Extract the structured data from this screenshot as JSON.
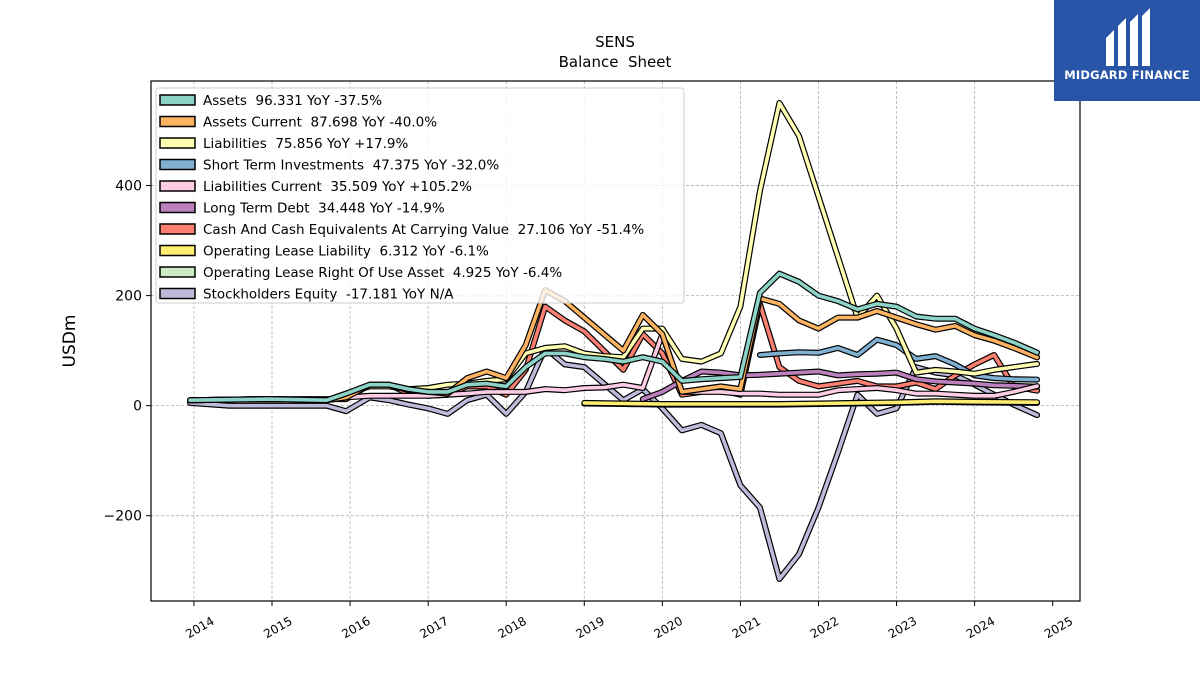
{
  "brand": {
    "name": "MIDGARD FINANCE",
    "color": "#2855a8"
  },
  "chart_data": {
    "type": "line",
    "title": "SENS",
    "subtitle": "Balance  Sheet",
    "xlabel": "",
    "ylabel": "USDm",
    "xlim": [
      2013.45,
      2025.35
    ],
    "ylim": [
      -355,
      590
    ],
    "x_ticks": [
      2014,
      2015,
      2016,
      2017,
      2018,
      2019,
      2020,
      2021,
      2022,
      2023,
      2024,
      2025
    ],
    "y_ticks": [
      -200,
      0,
      200,
      400
    ],
    "y_tick_labels": [
      "−200",
      "0",
      "200",
      "400"
    ],
    "grid": true,
    "legend_position": "top-left",
    "series": [
      {
        "name": "Assets  96.331 YoY -37.5%",
        "color": "#8dd3c7",
        "points": [
          [
            2013.95,
            10
          ],
          [
            2014.95,
            12
          ],
          [
            2015.7,
            10
          ],
          [
            2015.95,
            22
          ],
          [
            2016.25,
            38
          ],
          [
            2016.5,
            38
          ],
          [
            2016.75,
            30
          ],
          [
            2017,
            25
          ],
          [
            2017.25,
            25
          ],
          [
            2017.5,
            38
          ],
          [
            2017.75,
            40
          ],
          [
            2018,
            35
          ],
          [
            2018.25,
            70
          ],
          [
            2018.5,
            95
          ],
          [
            2018.75,
            95
          ],
          [
            2019,
            88
          ],
          [
            2019.25,
            85
          ],
          [
            2019.5,
            80
          ],
          [
            2019.75,
            88
          ],
          [
            2020,
            80
          ],
          [
            2020.25,
            45
          ],
          [
            2020.5,
            48
          ],
          [
            2020.75,
            50
          ],
          [
            2021,
            52
          ],
          [
            2021.25,
            205
          ],
          [
            2021.5,
            240
          ],
          [
            2021.75,
            225
          ],
          [
            2022,
            200
          ],
          [
            2022.25,
            190
          ],
          [
            2022.5,
            175
          ],
          [
            2022.75,
            185
          ],
          [
            2023,
            180
          ],
          [
            2023.25,
            162
          ],
          [
            2023.5,
            158
          ],
          [
            2023.75,
            158
          ],
          [
            2024,
            140
          ],
          [
            2024.25,
            128
          ],
          [
            2024.5,
            115
          ],
          [
            2024.8,
            96.331
          ]
        ]
      },
      {
        "name": "Assets Current  87.698 YoY -40.0%",
        "color": "#fdb462",
        "points": [
          [
            2013.95,
            10
          ],
          [
            2014.95,
            12
          ],
          [
            2015.7,
            10
          ],
          [
            2015.95,
            15
          ],
          [
            2016.25,
            38
          ],
          [
            2016.5,
            38
          ],
          [
            2016.75,
            28
          ],
          [
            2017,
            25
          ],
          [
            2017.25,
            22
          ],
          [
            2017.5,
            50
          ],
          [
            2017.75,
            62
          ],
          [
            2018,
            50
          ],
          [
            2018.25,
            110
          ],
          [
            2018.5,
            210
          ],
          [
            2018.75,
            190
          ],
          [
            2019,
            160
          ],
          [
            2019.25,
            130
          ],
          [
            2019.5,
            100
          ],
          [
            2019.75,
            165
          ],
          [
            2020,
            130
          ],
          [
            2020.25,
            25
          ],
          [
            2020.5,
            30
          ],
          [
            2020.75,
            35
          ],
          [
            2021,
            30
          ],
          [
            2021.25,
            195
          ],
          [
            2021.5,
            185
          ],
          [
            2021.75,
            155
          ],
          [
            2022,
            140
          ],
          [
            2022.25,
            160
          ],
          [
            2022.5,
            160
          ],
          [
            2022.75,
            172
          ],
          [
            2023,
            160
          ],
          [
            2023.25,
            148
          ],
          [
            2023.5,
            138
          ],
          [
            2023.75,
            145
          ],
          [
            2024,
            128
          ],
          [
            2024.25,
            118
          ],
          [
            2024.5,
            105
          ],
          [
            2024.8,
            87.698
          ]
        ]
      },
      {
        "name": "Liabilities  75.856 YoY +17.9%",
        "color": "#ffffb3",
        "points": [
          [
            2013.95,
            10
          ],
          [
            2014.95,
            12
          ],
          [
            2015.7,
            10
          ],
          [
            2015.95,
            22
          ],
          [
            2016.25,
            35
          ],
          [
            2016.5,
            35
          ],
          [
            2016.75,
            30
          ],
          [
            2017,
            32
          ],
          [
            2017.25,
            38
          ],
          [
            2017.5,
            40
          ],
          [
            2017.75,
            45
          ],
          [
            2018,
            48
          ],
          [
            2018.25,
            95
          ],
          [
            2018.5,
            105
          ],
          [
            2018.75,
            108
          ],
          [
            2019,
            95
          ],
          [
            2019.25,
            90
          ],
          [
            2019.5,
            88
          ],
          [
            2019.75,
            140
          ],
          [
            2020,
            140
          ],
          [
            2020.25,
            85
          ],
          [
            2020.5,
            80
          ],
          [
            2020.75,
            95
          ],
          [
            2021,
            180
          ],
          [
            2021.25,
            390
          ],
          [
            2021.5,
            550
          ],
          [
            2021.75,
            490
          ],
          [
            2022,
            380
          ],
          [
            2022.25,
            270
          ],
          [
            2022.5,
            160
          ],
          [
            2022.75,
            200
          ],
          [
            2023,
            140
          ],
          [
            2023.25,
            60
          ],
          [
            2023.5,
            65
          ],
          [
            2023.75,
            62
          ],
          [
            2024,
            58
          ],
          [
            2024.25,
            65
          ],
          [
            2024.5,
            70
          ],
          [
            2024.8,
            75.856
          ]
        ]
      },
      {
        "name": "Short Term Investments  47.375 YoY -32.0%",
        "color": "#80b1d3",
        "points": [
          [
            2021.25,
            92
          ],
          [
            2021.5,
            95
          ],
          [
            2021.75,
            97
          ],
          [
            2022,
            96
          ],
          [
            2022.25,
            105
          ],
          [
            2022.5,
            92
          ],
          [
            2022.75,
            120
          ],
          [
            2023,
            110
          ],
          [
            2023.25,
            85
          ],
          [
            2023.5,
            90
          ],
          [
            2023.75,
            75
          ],
          [
            2024,
            55
          ],
          [
            2024.25,
            50
          ],
          [
            2024.5,
            48
          ],
          [
            2024.8,
            47.375
          ]
        ]
      },
      {
        "name": "Liabilities Current  35.509 YoY +105.2%",
        "color": "#fccde5",
        "points": [
          [
            2013.95,
            10
          ],
          [
            2014.95,
            12
          ],
          [
            2015.7,
            10
          ],
          [
            2015.95,
            15
          ],
          [
            2016.25,
            18
          ],
          [
            2016.5,
            18
          ],
          [
            2016.75,
            18
          ],
          [
            2017,
            18
          ],
          [
            2017.25,
            20
          ],
          [
            2017.5,
            22
          ],
          [
            2017.75,
            25
          ],
          [
            2018,
            25
          ],
          [
            2018.25,
            25
          ],
          [
            2018.5,
            30
          ],
          [
            2018.75,
            28
          ],
          [
            2019,
            32
          ],
          [
            2019.25,
            33
          ],
          [
            2019.5,
            38
          ],
          [
            2019.75,
            32
          ],
          [
            2020,
            130
          ],
          [
            2020.25,
            25
          ],
          [
            2020.5,
            25
          ],
          [
            2020.75,
            25
          ],
          [
            2021,
            22
          ],
          [
            2021.25,
            22
          ],
          [
            2021.5,
            20
          ],
          [
            2021.75,
            20
          ],
          [
            2022,
            20
          ],
          [
            2022.25,
            28
          ],
          [
            2022.5,
            30
          ],
          [
            2022.75,
            32
          ],
          [
            2023,
            28
          ],
          [
            2023.25,
            22
          ],
          [
            2023.5,
            22
          ],
          [
            2023.75,
            20
          ],
          [
            2024,
            18
          ],
          [
            2024.25,
            18
          ],
          [
            2024.5,
            25
          ],
          [
            2024.8,
            35.509
          ]
        ]
      },
      {
        "name": "Long Term Debt  34.448 YoY -14.9%",
        "color": "#bc80bd",
        "points": [
          [
            2019.75,
            12
          ],
          [
            2020,
            25
          ],
          [
            2020.25,
            45
          ],
          [
            2020.5,
            62
          ],
          [
            2020.75,
            60
          ],
          [
            2021,
            55
          ],
          [
            2021.25,
            56
          ],
          [
            2021.5,
            58
          ],
          [
            2021.75,
            60
          ],
          [
            2022,
            62
          ],
          [
            2022.25,
            55
          ],
          [
            2022.5,
            57
          ],
          [
            2022.75,
            58
          ],
          [
            2023,
            60
          ],
          [
            2023.25,
            48
          ],
          [
            2023.5,
            44
          ],
          [
            2023.75,
            42
          ],
          [
            2024,
            40
          ],
          [
            2024.25,
            37
          ],
          [
            2024.5,
            36
          ],
          [
            2024.8,
            34.448
          ]
        ]
      },
      {
        "name": "Cash And Cash Equivalents At Carrying Value  27.106 YoY -51.4%",
        "color": "#fb8072",
        "points": [
          [
            2013.95,
            10
          ],
          [
            2014.95,
            12
          ],
          [
            2015.7,
            12
          ],
          [
            2015.95,
            12
          ],
          [
            2016.25,
            38
          ],
          [
            2016.5,
            38
          ],
          [
            2016.75,
            22
          ],
          [
            2017,
            18
          ],
          [
            2017.25,
            20
          ],
          [
            2017.5,
            35
          ],
          [
            2017.75,
            35
          ],
          [
            2018,
            20
          ],
          [
            2018.25,
            65
          ],
          [
            2018.5,
            180
          ],
          [
            2018.75,
            155
          ],
          [
            2019,
            135
          ],
          [
            2019.25,
            100
          ],
          [
            2019.5,
            65
          ],
          [
            2019.75,
            130
          ],
          [
            2020,
            95
          ],
          [
            2020.25,
            20
          ],
          [
            2020.5,
            25
          ],
          [
            2020.75,
            28
          ],
          [
            2021,
            20
          ],
          [
            2021.25,
            185
          ],
          [
            2021.5,
            70
          ],
          [
            2021.75,
            45
          ],
          [
            2022,
            35
          ],
          [
            2022.25,
            40
          ],
          [
            2022.5,
            45
          ],
          [
            2022.75,
            35
          ],
          [
            2023,
            35
          ],
          [
            2023.25,
            42
          ],
          [
            2023.5,
            30
          ],
          [
            2023.75,
            55
          ],
          [
            2024,
            75
          ],
          [
            2024.25,
            92
          ],
          [
            2024.5,
            35
          ],
          [
            2024.8,
            27.106
          ]
        ]
      },
      {
        "name": "Operating Lease Liability  6.312 YoY -6.1%",
        "color": "#ffed6f",
        "points": [
          [
            2019,
            5
          ],
          [
            2019.5,
            4
          ],
          [
            2020,
            3
          ],
          [
            2021,
            3
          ],
          [
            2021.5,
            3
          ],
          [
            2022,
            4
          ],
          [
            2022.5,
            5
          ],
          [
            2023,
            6
          ],
          [
            2023.5,
            8
          ],
          [
            2024,
            7
          ],
          [
            2024.8,
            6.312
          ]
        ]
      },
      {
        "name": "Operating Lease Right Of Use Asset  4.925 YoY -6.4%",
        "color": "#ccebc5",
        "points": [
          [
            2019,
            4
          ],
          [
            2019.5,
            3
          ],
          [
            2020,
            2
          ],
          [
            2021,
            2
          ],
          [
            2021.5,
            2
          ],
          [
            2022,
            3
          ],
          [
            2022.5,
            4
          ],
          [
            2023,
            5
          ],
          [
            2023.5,
            7
          ],
          [
            2024,
            6
          ],
          [
            2024.8,
            4.925
          ]
        ]
      },
      {
        "name": "Stockholders Equity  -17.181 YoY N/A",
        "color": "#bebada",
        "points": [
          [
            2013.95,
            5
          ],
          [
            2014.45,
            0
          ],
          [
            2014.95,
            0
          ],
          [
            2015.7,
            0
          ],
          [
            2015.95,
            -10
          ],
          [
            2016.25,
            15
          ],
          [
            2016.5,
            10
          ],
          [
            2016.75,
            2
          ],
          [
            2017,
            -5
          ],
          [
            2017.25,
            -15
          ],
          [
            2017.5,
            10
          ],
          [
            2017.75,
            20
          ],
          [
            2018,
            -15
          ],
          [
            2018.25,
            25
          ],
          [
            2018.5,
            105
          ],
          [
            2018.75,
            75
          ],
          [
            2019,
            70
          ],
          [
            2019.25,
            40
          ],
          [
            2019.5,
            10
          ],
          [
            2019.75,
            30
          ],
          [
            2020,
            -5
          ],
          [
            2020.25,
            -45
          ],
          [
            2020.5,
            -35
          ],
          [
            2020.75,
            -50
          ],
          [
            2021,
            -145
          ],
          [
            2021.25,
            -185
          ],
          [
            2021.5,
            -315
          ],
          [
            2021.75,
            -270
          ],
          [
            2022,
            -185
          ],
          [
            2022.25,
            -85
          ],
          [
            2022.5,
            20
          ],
          [
            2022.75,
            -15
          ],
          [
            2023,
            -5
          ],
          [
            2023.25,
            70
          ],
          [
            2023.5,
            60
          ],
          [
            2023.75,
            55
          ],
          [
            2024,
            38
          ],
          [
            2024.25,
            20
          ],
          [
            2024.5,
            2
          ],
          [
            2024.8,
            -17.181
          ]
        ]
      }
    ]
  }
}
